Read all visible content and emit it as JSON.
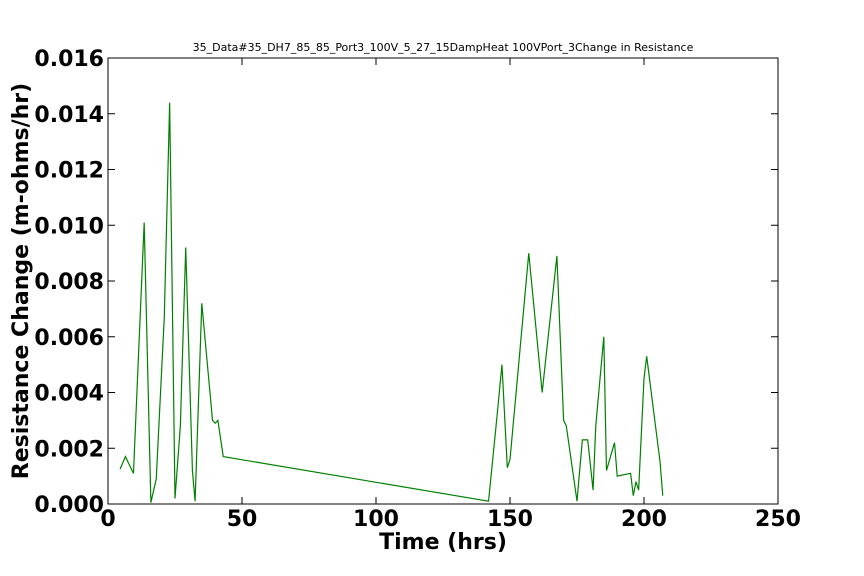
{
  "chart_data": {
    "type": "line",
    "title": "35_Data#35_DH7_85_85_Port3_100V_5_27_15DampHeat 100VPort_3Change in Resistance",
    "xlabel": "Time (hrs)",
    "ylabel": "Resistance Change (m-ohms/hr)",
    "xlim": [
      0,
      250
    ],
    "ylim": [
      0,
      0.016
    ],
    "xticks": [
      "0",
      "50",
      "100",
      "150",
      "200",
      "250"
    ],
    "yticks": [
      "0.000",
      "0.002",
      "0.004",
      "0.006",
      "0.008",
      "0.010",
      "0.012",
      "0.014",
      "0.016"
    ],
    "grid": false,
    "series": [
      {
        "color": "#008000",
        "x": [
          4.5,
          6.5,
          9.5,
          13.5,
          16,
          18,
          21,
          23,
          25,
          27,
          29,
          31.5,
          32.5,
          35,
          39,
          40,
          41,
          43,
          142,
          145,
          147,
          149,
          150,
          152,
          157,
          162,
          167.5,
          170,
          171,
          175,
          177,
          179,
          181,
          182,
          185,
          186,
          189,
          190,
          195,
          196,
          197,
          198,
          200,
          201,
          206,
          207
        ],
        "y": [
          0.00125,
          0.0017,
          0.0011,
          0.0101,
          5e-05,
          0.0009,
          0.0067,
          0.0144,
          0.0002,
          0.0028,
          0.0092,
          0.0012,
          0.0001,
          0.0072,
          0.003,
          0.0029,
          0.003,
          0.0017,
          0.0001,
          0.003,
          0.005,
          0.0013,
          0.0016,
          0.0037,
          0.009,
          0.004,
          0.0089,
          0.003,
          0.0028,
          0.0001,
          0.0023,
          0.0023,
          0.0005,
          0.0028,
          0.006,
          0.0012,
          0.0022,
          0.001,
          0.0011,
          0.0003,
          0.0008,
          0.0005,
          0.0045,
          0.0053,
          0.0015,
          0.0003
        ]
      }
    ]
  }
}
